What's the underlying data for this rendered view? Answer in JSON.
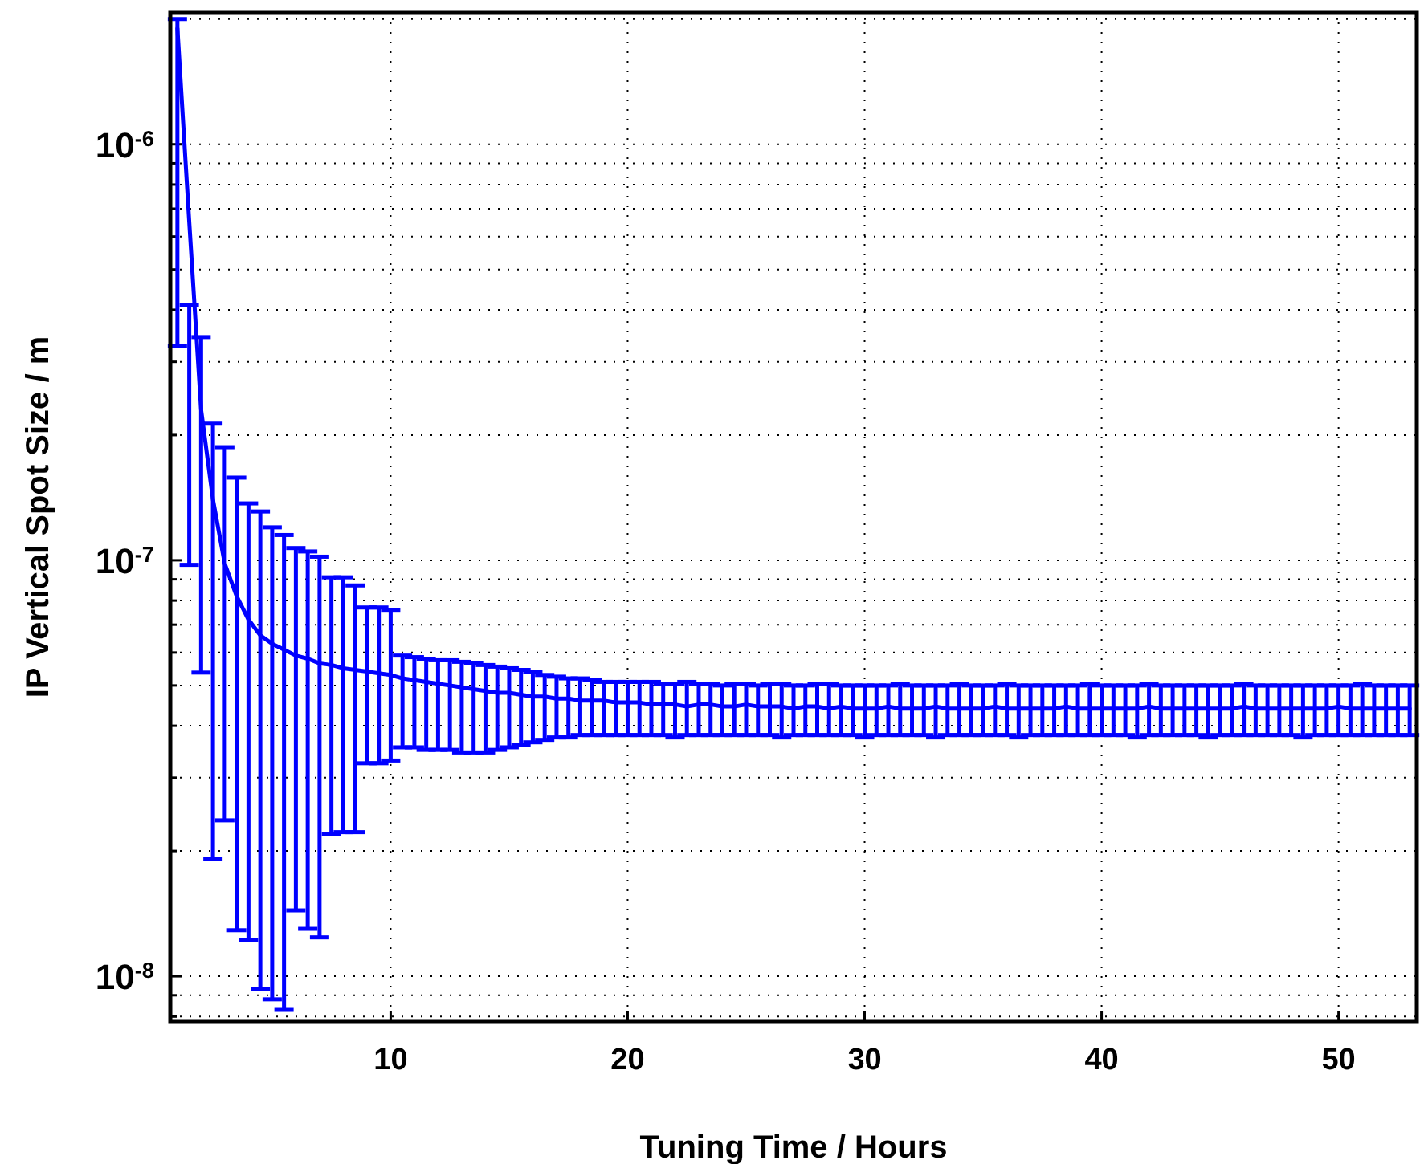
{
  "chart_data": {
    "type": "line",
    "xlabel": "Tuning Time / Hours",
    "ylabel": "IP Vertical Spot Size / m",
    "log": "y",
    "grid": true,
    "marker": "none",
    "line_style": "solid",
    "xlim": [
      0.7,
      53.3
    ],
    "xticks": [
      10,
      20,
      30,
      40,
      50
    ],
    "ylim": [
      7.8e-09,
      2.07e-06
    ],
    "yticks": [
      {
        "value": 8e-09,
        "label": null
      },
      {
        "value": 9e-09,
        "label": null
      },
      {
        "value": 1e-08,
        "label": "10$^{-8}$"
      },
      {
        "value": 2e-08,
        "label": null
      },
      {
        "value": 3e-08,
        "label": null
      },
      {
        "value": 4e-08,
        "label": null
      },
      {
        "value": 5e-08,
        "label": null
      },
      {
        "value": 6e-08,
        "label": null
      },
      {
        "value": 7e-08,
        "label": null
      },
      {
        "value": 8e-08,
        "label": null
      },
      {
        "value": 9e-08,
        "label": null
      },
      {
        "value": 1e-07,
        "label": "10$^{-7}$"
      },
      {
        "value": 2e-07,
        "label": null
      },
      {
        "value": 3e-07,
        "label": null
      },
      {
        "value": 4e-07,
        "label": null
      },
      {
        "value": 5e-07,
        "label": null
      },
      {
        "value": 6e-07,
        "label": null
      },
      {
        "value": 7e-07,
        "label": null
      },
      {
        "value": 8e-07,
        "label": null
      },
      {
        "value": 9e-07,
        "label": null
      },
      {
        "value": 1e-06,
        "label": "10$^{-6}$"
      },
      {
        "value": 2e-06,
        "label": null
      }
    ],
    "series": [
      {
        "color": "#0000ff",
        "x": [
          1,
          1.5,
          2,
          2.5,
          3,
          3.5,
          4,
          4.5,
          5,
          5.5,
          6,
          6.5,
          7,
          7.5,
          8,
          8.5,
          9,
          9.5,
          10,
          10.5,
          11,
          11.5,
          12,
          12.5,
          13,
          13.5,
          14,
          14.5,
          15,
          15.5,
          16,
          16.5,
          17,
          17.5,
          18,
          18.5,
          19,
          19.5,
          20,
          20.5,
          21,
          21.5,
          22,
          22.5,
          23,
          23.5,
          24,
          24.5,
          25,
          25.5,
          26,
          26.5,
          27,
          27.5,
          28,
          28.5,
          29,
          29.5,
          30,
          30.5,
          31,
          31.5,
          32,
          32.5,
          33,
          33.5,
          34,
          34.5,
          35,
          35.5,
          36,
          36.5,
          37,
          37.5,
          38,
          38.5,
          39,
          39.5,
          40,
          40.5,
          41,
          41.5,
          42,
          42.5,
          43,
          43.5,
          44,
          44.5,
          45,
          45.5,
          46,
          46.5,
          47,
          47.5,
          48,
          48.5,
          49,
          49.5,
          50,
          50.5,
          51,
          51.5,
          52,
          52.5,
          53
        ],
        "values": [
          1.9e-06,
          6.5e-07,
          2.3e-07,
          1.4e-07,
          9.8e-08,
          8.2e-08,
          7.2e-08,
          6.6e-08,
          6.3e-08,
          6.1e-08,
          5.9e-08,
          5.8e-08,
          5.65e-08,
          5.6e-08,
          5.5e-08,
          5.45e-08,
          5.4e-08,
          5.35e-08,
          5.3e-08,
          5.2e-08,
          5.15e-08,
          5.1e-08,
          5.05e-08,
          5e-08,
          4.95e-08,
          4.9e-08,
          4.85e-08,
          4.8e-08,
          4.8e-08,
          4.75e-08,
          4.7e-08,
          4.7e-08,
          4.65e-08,
          4.65e-08,
          4.6e-08,
          4.6e-08,
          4.6e-08,
          4.55e-08,
          4.55e-08,
          4.55e-08,
          4.5e-08,
          4.5e-08,
          4.5e-08,
          4.45e-08,
          4.5e-08,
          4.5e-08,
          4.45e-08,
          4.45e-08,
          4.5e-08,
          4.45e-08,
          4.45e-08,
          4.45e-08,
          4.4e-08,
          4.45e-08,
          4.45e-08,
          4.4e-08,
          4.45e-08,
          4.4e-08,
          4.4e-08,
          4.4e-08,
          4.45e-08,
          4.4e-08,
          4.4e-08,
          4.4e-08,
          4.45e-08,
          4.4e-08,
          4.4e-08,
          4.4e-08,
          4.4e-08,
          4.45e-08,
          4.4e-08,
          4.4e-08,
          4.4e-08,
          4.4e-08,
          4.4e-08,
          4.45e-08,
          4.4e-08,
          4.4e-08,
          4.4e-08,
          4.4e-08,
          4.4e-08,
          4.4e-08,
          4.45e-08,
          4.4e-08,
          4.4e-08,
          4.4e-08,
          4.4e-08,
          4.4e-08,
          4.4e-08,
          4.4e-08,
          4.45e-08,
          4.4e-08,
          4.4e-08,
          4.4e-08,
          4.4e-08,
          4.4e-08,
          4.4e-08,
          4.4e-08,
          4.45e-08,
          4.4e-08,
          4.4e-08,
          4.4e-08,
          4.4e-08,
          4.4e-08,
          4.4e-08
        ],
        "errors": [
          [
            3.27e-07,
            2e-06
          ],
          [
            9.75e-08,
            4.1e-07
          ],
          [
            5.37e-08,
            3.44e-07
          ],
          [
            1.91e-08,
            2.13e-07
          ],
          [
            2.37e-08,
            1.87e-07
          ],
          [
            1.29e-08,
            1.58e-07
          ],
          [
            1.22e-08,
            1.37e-07
          ],
          [
            9.3e-09,
            1.31e-07
          ],
          [
            8.8e-09,
            1.2e-07
          ],
          [
            8.3e-09,
            1.15e-07
          ],
          [
            1.44e-08,
            1.07e-07
          ],
          [
            1.3e-08,
            1.05e-07
          ],
          [
            1.24e-08,
            1.02e-07
          ],
          [
            2.2e-08,
            9.1e-08
          ],
          [
            2.22e-08,
            9.1e-08
          ],
          [
            2.22e-08,
            8.7e-08
          ],
          [
            3.25e-08,
            7.7e-08
          ],
          [
            3.25e-08,
            7.7e-08
          ],
          [
            3.3e-08,
            7.6e-08
          ],
          [
            3.55e-08,
            5.9e-08
          ],
          [
            3.55e-08,
            5.85e-08
          ],
          [
            3.5e-08,
            5.8e-08
          ],
          [
            3.5e-08,
            5.75e-08
          ],
          [
            3.5e-08,
            5.75e-08
          ],
          [
            3.45e-08,
            5.7e-08
          ],
          [
            3.45e-08,
            5.65e-08
          ],
          [
            3.45e-08,
            5.6e-08
          ],
          [
            3.5e-08,
            5.55e-08
          ],
          [
            3.55e-08,
            5.5e-08
          ],
          [
            3.6e-08,
            5.45e-08
          ],
          [
            3.65e-08,
            5.4e-08
          ],
          [
            3.7e-08,
            5.3e-08
          ],
          [
            3.75e-08,
            5.25e-08
          ],
          [
            3.75e-08,
            5.2e-08
          ],
          [
            3.8e-08,
            5.2e-08
          ],
          [
            3.8e-08,
            5.15e-08
          ],
          [
            3.8e-08,
            5.1e-08
          ],
          [
            3.8e-08,
            5.1e-08
          ],
          [
            3.8e-08,
            5.1e-08
          ],
          [
            3.8e-08,
            5.1e-08
          ],
          [
            3.8e-08,
            5.1e-08
          ],
          [
            3.8e-08,
            5.05e-08
          ],
          [
            3.75e-08,
            5.05e-08
          ],
          [
            3.8e-08,
            5.1e-08
          ],
          [
            3.8e-08,
            5.05e-08
          ],
          [
            3.8e-08,
            5.05e-08
          ],
          [
            3.8e-08,
            5e-08
          ],
          [
            3.8e-08,
            5.05e-08
          ],
          [
            3.8e-08,
            5.05e-08
          ],
          [
            3.8e-08,
            5e-08
          ],
          [
            3.8e-08,
            5.05e-08
          ],
          [
            3.75e-08,
            5.05e-08
          ],
          [
            3.8e-08,
            5e-08
          ],
          [
            3.8e-08,
            5e-08
          ],
          [
            3.8e-08,
            5.05e-08
          ],
          [
            3.8e-08,
            5.05e-08
          ],
          [
            3.8e-08,
            5e-08
          ],
          [
            3.8e-08,
            5e-08
          ],
          [
            3.75e-08,
            5e-08
          ],
          [
            3.8e-08,
            5e-08
          ],
          [
            3.8e-08,
            5e-08
          ],
          [
            3.8e-08,
            5.05e-08
          ],
          [
            3.8e-08,
            5e-08
          ],
          [
            3.8e-08,
            5e-08
          ],
          [
            3.75e-08,
            5e-08
          ],
          [
            3.8e-08,
            5e-08
          ],
          [
            3.8e-08,
            5.05e-08
          ],
          [
            3.8e-08,
            5e-08
          ],
          [
            3.8e-08,
            5e-08
          ],
          [
            3.8e-08,
            5e-08
          ],
          [
            3.8e-08,
            5.05e-08
          ],
          [
            3.75e-08,
            5e-08
          ],
          [
            3.8e-08,
            5e-08
          ],
          [
            3.8e-08,
            5e-08
          ],
          [
            3.8e-08,
            5e-08
          ],
          [
            3.8e-08,
            5e-08
          ],
          [
            3.8e-08,
            5e-08
          ],
          [
            3.8e-08,
            5.05e-08
          ],
          [
            3.8e-08,
            5e-08
          ],
          [
            3.8e-08,
            5e-08
          ],
          [
            3.8e-08,
            5e-08
          ],
          [
            3.75e-08,
            5e-08
          ],
          [
            3.8e-08,
            5.05e-08
          ],
          [
            3.8e-08,
            5e-08
          ],
          [
            3.8e-08,
            5e-08
          ],
          [
            3.8e-08,
            5e-08
          ],
          [
            3.8e-08,
            5e-08
          ],
          [
            3.75e-08,
            5e-08
          ],
          [
            3.8e-08,
            5e-08
          ],
          [
            3.8e-08,
            5e-08
          ],
          [
            3.8e-08,
            5.05e-08
          ],
          [
            3.8e-08,
            5e-08
          ],
          [
            3.8e-08,
            5e-08
          ],
          [
            3.8e-08,
            5e-08
          ],
          [
            3.8e-08,
            5e-08
          ],
          [
            3.75e-08,
            5e-08
          ],
          [
            3.8e-08,
            5e-08
          ],
          [
            3.8e-08,
            5e-08
          ],
          [
            3.8e-08,
            5e-08
          ],
          [
            3.8e-08,
            5e-08
          ],
          [
            3.8e-08,
            5.05e-08
          ],
          [
            3.8e-08,
            5e-08
          ],
          [
            3.8e-08,
            5e-08
          ],
          [
            3.8e-08,
            5e-08
          ],
          [
            3.8e-08,
            5e-08
          ]
        ]
      }
    ]
  }
}
